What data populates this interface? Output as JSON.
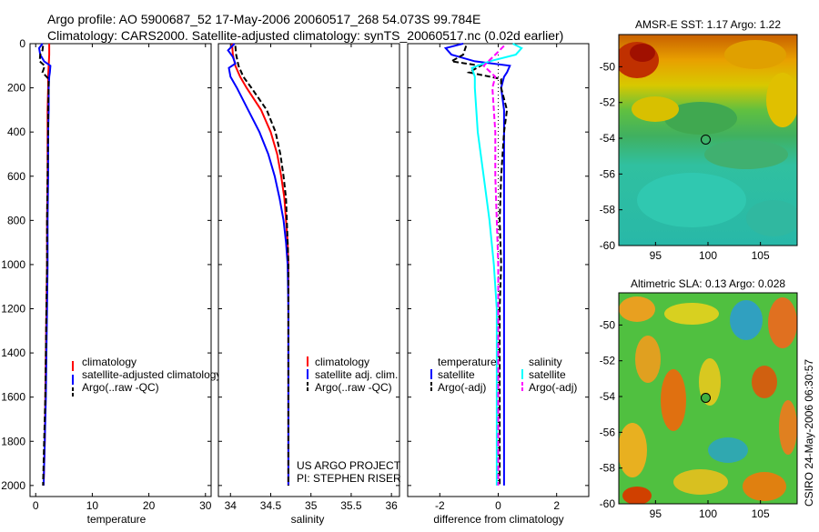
{
  "title": {
    "line1": "Argo profile: AO 5900687_52 17-May-2006 20060517_268 54.073S 99.784E",
    "line2": "Climatology: CARS2000. Satellite-adjusted climatology: synTS_20060517.nc (0.02d earlier)"
  },
  "side_label": "CSIRO 24-May-2006 06:30:57",
  "chart_data": [
    {
      "id": "temperature",
      "type": "line",
      "xlabel": "temperature",
      "ylabel": "",
      "xlim": [
        -1,
        31
      ],
      "ylim": [
        2050,
        0
      ],
      "xticks": [
        0,
        10,
        20,
        30
      ],
      "yticks": [
        0,
        200,
        400,
        600,
        800,
        1000,
        1200,
        1400,
        1600,
        1800,
        2000
      ],
      "legend": [
        "climatology",
        "satellite-adjusted climatology",
        "Argo(..raw -QC)"
      ],
      "series": [
        {
          "name": "climatology",
          "color": "#ff0000",
          "depth": [
            0,
            20,
            50,
            100,
            150,
            200,
            300,
            400,
            600,
            800,
            1000,
            1200,
            1400,
            1600,
            1800,
            2000
          ],
          "values": [
            2.4,
            2.4,
            2.4,
            2.3,
            2.2,
            2.2,
            2.1,
            2.1,
            2.1,
            2.0,
            2.0,
            1.9,
            1.8,
            1.7,
            1.6,
            1.4
          ]
        },
        {
          "name": "satellite-adjusted climatology",
          "color": "#0000ff",
          "depth": [
            0,
            20,
            50,
            80,
            100,
            130,
            150,
            200,
            300,
            400,
            600,
            800,
            1000,
            1200,
            1400,
            1600,
            1800,
            2000
          ],
          "values": [
            1.2,
            0.6,
            0.8,
            1.5,
            2.6,
            2.5,
            2.4,
            2.3,
            2.3,
            2.2,
            2.2,
            2.1,
            2.1,
            2.0,
            1.9,
            1.8,
            1.6,
            1.4
          ]
        },
        {
          "name": "Argo(..raw -QC)",
          "color": "#000000",
          "dashed": true,
          "depth": [
            10,
            30,
            50,
            80,
            100,
            130,
            160,
            200,
            300,
            400,
            600,
            800,
            1000,
            1200,
            1400,
            1600,
            1800,
            2000
          ],
          "values": [
            1.3,
            1.2,
            0.8,
            0.7,
            1.6,
            1.2,
            2.3,
            2.3,
            2.2,
            2.2,
            2.1,
            2.0,
            2.0,
            1.9,
            1.8,
            1.7,
            1.5,
            1.3
          ]
        }
      ]
    },
    {
      "id": "salinity",
      "type": "line",
      "xlabel": "salinity",
      "xlim": [
        33.85,
        36.1
      ],
      "ylim": [
        2050,
        0
      ],
      "xticks": [
        34,
        34.5,
        35,
        35.5,
        36
      ],
      "legend": [
        "climatology",
        "satellite adj. clim.",
        "Argo(..raw -QC)"
      ],
      "annotation": [
        "US ARGO PROJECT",
        "PI: STEPHEN RISER"
      ],
      "series": [
        {
          "name": "climatology",
          "color": "#ff0000",
          "depth": [
            0,
            50,
            100,
            150,
            200,
            300,
            400,
            500,
            600,
            700,
            800,
            900,
            1000,
            1200,
            1500,
            2000
          ],
          "values": [
            34.02,
            34.03,
            34.06,
            34.12,
            34.2,
            34.38,
            34.5,
            34.58,
            34.63,
            34.67,
            34.69,
            34.71,
            34.72,
            34.72,
            34.72,
            34.72
          ]
        },
        {
          "name": "satellite adj. clim.",
          "color": "#0000ff",
          "depth": [
            0,
            30,
            60,
            90,
            110,
            150,
            200,
            300,
            400,
            500,
            600,
            700,
            800,
            900,
            1000,
            1200,
            1500,
            2000
          ],
          "values": [
            34.05,
            33.97,
            34.03,
            34.06,
            33.98,
            34.0,
            34.08,
            34.22,
            34.36,
            34.47,
            34.55,
            34.61,
            34.66,
            34.69,
            34.71,
            34.72,
            34.72,
            34.72
          ]
        },
        {
          "name": "Argo(..raw -QC)",
          "color": "#000000",
          "dashed": true,
          "depth": [
            10,
            50,
            100,
            150,
            200,
            300,
            400,
            500,
            600,
            700,
            800,
            900,
            1000,
            1200,
            1500,
            2000
          ],
          "values": [
            34.06,
            34.07,
            34.1,
            34.16,
            34.26,
            34.45,
            34.56,
            34.62,
            34.66,
            34.69,
            34.7,
            34.71,
            34.72,
            34.72,
            34.72,
            34.72
          ]
        }
      ]
    },
    {
      "id": "difference",
      "type": "line",
      "xlabel": "difference from climatology",
      "xlim": [
        -3.1,
        3.1
      ],
      "ylim": [
        2050,
        0
      ],
      "xticks": [
        -2,
        0,
        2
      ],
      "legend_groups": [
        {
          "header": "temperature",
          "entries": [
            "satellite",
            "Argo(-adj)"
          ]
        },
        {
          "header": "salinity",
          "entries": [
            "satellite",
            "Argo(-adj)"
          ]
        }
      ],
      "series": [
        {
          "name": "temperature satellite",
          "color": "#0000ff",
          "depth": [
            0,
            20,
            50,
            80,
            100,
            130,
            150,
            200,
            300,
            500,
            800,
            1000,
            1200,
            1500,
            2000
          ],
          "values": [
            -1.2,
            -1.8,
            -1.6,
            -0.8,
            0.4,
            0.3,
            0.2,
            0.1,
            0.2,
            0.2,
            0.2,
            0.2,
            0.2,
            0.2,
            0.2
          ]
        },
        {
          "name": "temperature Argo(-adj)",
          "color": "#000000",
          "dashed": true,
          "depth": [
            10,
            50,
            80,
            100,
            130,
            160,
            200,
            300,
            400,
            600,
            800,
            1000,
            1200,
            1500,
            2000
          ],
          "values": [
            -1.1,
            -1.2,
            -1.6,
            -0.6,
            -1.0,
            0.1,
            0.1,
            0.3,
            0.2,
            0.1,
            0.05,
            0.1,
            0.05,
            0.05,
            0.05
          ]
        },
        {
          "name": "salinity satellite",
          "color": "#00ffff",
          "depth": [
            0,
            20,
            50,
            80,
            110,
            150,
            200,
            300,
            400,
            600,
            800,
            1000,
            1200,
            1500,
            2000
          ],
          "values": [
            0.5,
            0.8,
            0.6,
            -0.3,
            -0.9,
            -0.8,
            -0.8,
            -0.75,
            -0.7,
            -0.5,
            -0.3,
            -0.15,
            -0.05,
            -0.05,
            -0.05
          ]
        },
        {
          "name": "salinity Argo(-adj)",
          "color": "#ff00ff",
          "dashed": true,
          "depth": [
            10,
            50,
            100,
            150,
            200,
            300,
            400,
            600,
            800,
            1000,
            1200,
            1500,
            2000
          ],
          "values": [
            0.2,
            -0.1,
            -0.5,
            -0.1,
            -0.2,
            -0.15,
            -0.1,
            -0.1,
            -0.05,
            0.0,
            0.0,
            0.0,
            0.0
          ]
        }
      ]
    },
    {
      "id": "sst_map",
      "type": "heatmap",
      "title": "AMSR-E SST: 1.17 Argo: 1.22",
      "xlim": [
        91.5,
        108.5
      ],
      "ylim": [
        -60,
        -48.2
      ],
      "xticks": [
        95,
        100,
        105
      ],
      "yticks": [
        -50,
        -52,
        -54,
        -56,
        -58,
        -60
      ],
      "marker": {
        "lon": 99.784,
        "lat": -54.073
      }
    },
    {
      "id": "sla_map",
      "type": "heatmap",
      "title": "Altimetric SLA: 0.13 Argo: 0.028",
      "xlim": [
        91.5,
        108.5
      ],
      "ylim": [
        -60,
        -48.2
      ],
      "xticks": [
        95,
        100,
        105
      ],
      "yticks": [
        -50,
        -52,
        -54,
        -56,
        -58,
        -60
      ],
      "marker": {
        "lon": 99.784,
        "lat": -54.073
      }
    }
  ]
}
